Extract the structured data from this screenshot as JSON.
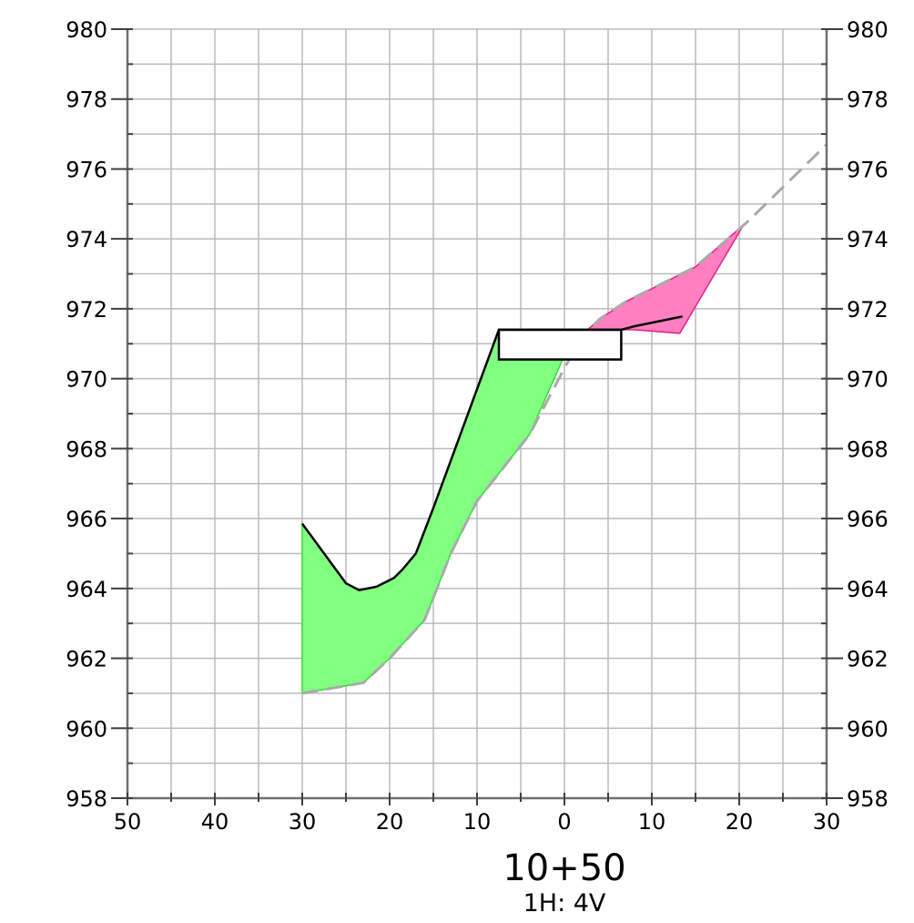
{
  "chart_data": {
    "type": "cross-section",
    "title": "10+50",
    "subtitle": "1H: 4V",
    "x_tick_labels": [
      "50",
      "40",
      "30",
      "20",
      "10",
      "0",
      "10",
      "20",
      "30"
    ],
    "x_tick_values": [
      -50,
      -40,
      -30,
      -20,
      -10,
      0,
      10,
      20,
      30
    ],
    "y_tick_values": [
      958,
      960,
      962,
      964,
      966,
      968,
      970,
      972,
      974,
      976,
      978,
      980
    ],
    "xlim": [
      -50,
      30
    ],
    "ylim": [
      958,
      980
    ],
    "grid": true,
    "colors": {
      "cut_fill": "#80ff80",
      "cut_stroke": "#33dd33",
      "fill_fill": "#ff80c0",
      "fill_stroke": "#e8208a",
      "ground_line": "#aaaaaa",
      "design_line": "#000000",
      "grid": "#bbbbbb"
    },
    "existing_ground": [
      [
        -30,
        961.0
      ],
      [
        -23,
        961.3
      ],
      [
        -20,
        962.0
      ],
      [
        -16,
        963.1
      ],
      [
        -13,
        965.0
      ],
      [
        -10,
        966.5
      ],
      [
        -4,
        968.4
      ],
      [
        0,
        970.3
      ],
      [
        2,
        971.2
      ],
      [
        4,
        971.7
      ],
      [
        7,
        972.2
      ],
      [
        11,
        972.7
      ],
      [
        15,
        973.2
      ],
      [
        21,
        974.5
      ],
      [
        30,
        976.7
      ]
    ],
    "design_section": [
      [
        -30,
        965.85
      ],
      [
        -25,
        964.15
      ],
      [
        -23.5,
        963.95
      ],
      [
        -21.5,
        964.05
      ],
      [
        -19.5,
        964.3
      ],
      [
        -18.5,
        964.55
      ],
      [
        -17,
        965.0
      ],
      [
        -15,
        966.3
      ],
      [
        -12.5,
        968.0
      ],
      [
        -7.5,
        971.4
      ],
      [
        6.5,
        971.4
      ],
      [
        8,
        971.5
      ],
      [
        13.5,
        971.78
      ]
    ],
    "pavement_box": {
      "x": [
        -7.5,
        6.5
      ],
      "y": [
        970.55,
        971.4
      ]
    },
    "cut_area": [
      [
        -30,
        965.85
      ],
      [
        -25,
        964.15
      ],
      [
        -23.5,
        963.95
      ],
      [
        -21.5,
        964.05
      ],
      [
        -19.5,
        964.3
      ],
      [
        -18.5,
        964.55
      ],
      [
        -17,
        965.0
      ],
      [
        -15,
        966.3
      ],
      [
        -12.5,
        968.0
      ],
      [
        -7.5,
        971.4
      ],
      [
        -7.5,
        970.55
      ],
      [
        -0.2,
        970.55
      ],
      [
        -4,
        968.4
      ],
      [
        -10,
        966.5
      ],
      [
        -13,
        965.0
      ],
      [
        -16,
        963.1
      ],
      [
        -20,
        962.0
      ],
      [
        -23,
        961.3
      ],
      [
        -30,
        961.0
      ]
    ],
    "fill_area": [
      [
        2.2,
        971.3
      ],
      [
        4,
        971.7
      ],
      [
        7,
        972.2
      ],
      [
        11,
        972.7
      ],
      [
        15,
        973.2
      ],
      [
        20.5,
        974.4
      ],
      [
        13.2,
        971.3
      ],
      [
        8,
        971.4
      ],
      [
        6.5,
        971.4
      ]
    ]
  }
}
